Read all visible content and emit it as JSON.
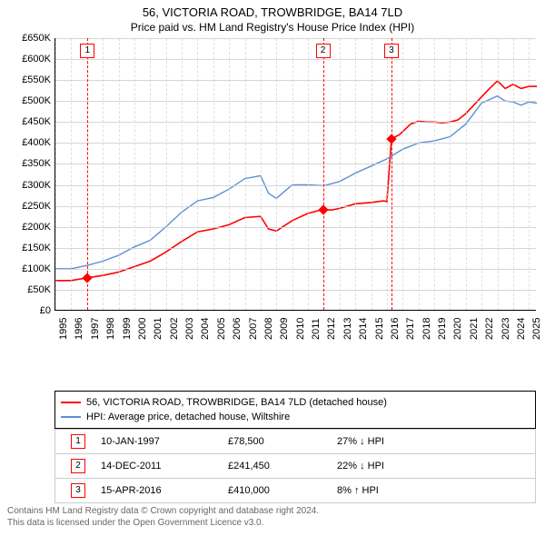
{
  "background_color": "#ffffff",
  "text_color": "#000000",
  "grid_color": "#cccccc",
  "title": {
    "line1": "56, VICTORIA ROAD, TROWBRIDGE, BA14 7LD",
    "line2": "Price paid vs. HM Land Registry's House Price Index (HPI)",
    "fontsize1": 13,
    "fontsize2": 12
  },
  "chart": {
    "type": "line",
    "xlim": [
      1995,
      2025.5
    ],
    "ylim": [
      0,
      650000
    ],
    "ytick_step": 50000,
    "yticks": [
      "£0",
      "£50K",
      "£100K",
      "£150K",
      "£200K",
      "£250K",
      "£300K",
      "£350K",
      "£400K",
      "£450K",
      "£500K",
      "£550K",
      "£600K",
      "£650K"
    ],
    "xticks": [
      1995,
      1996,
      1997,
      1998,
      1999,
      2000,
      2001,
      2002,
      2003,
      2004,
      2005,
      2006,
      2007,
      2008,
      2009,
      2010,
      2011,
      2012,
      2013,
      2014,
      2015,
      2016,
      2017,
      2018,
      2019,
      2020,
      2021,
      2022,
      2023,
      2024,
      2025
    ],
    "series": [
      {
        "name": "price_paid",
        "label": "56, VICTORIA ROAD, TROWBRIDGE, BA14 7LD (detached house)",
        "color": "#ff0000",
        "line_width": 1.6,
        "points": [
          [
            1995.0,
            72000
          ],
          [
            1996.0,
            72000
          ],
          [
            1997.0,
            78500
          ],
          [
            1998.0,
            84000
          ],
          [
            1999.0,
            92000
          ],
          [
            2000.0,
            105000
          ],
          [
            2001.0,
            118000
          ],
          [
            2002.0,
            140000
          ],
          [
            2003.0,
            165000
          ],
          [
            2004.0,
            188000
          ],
          [
            2005.0,
            195000
          ],
          [
            2006.0,
            205000
          ],
          [
            2007.0,
            222000
          ],
          [
            2008.0,
            225000
          ],
          [
            2008.5,
            195000
          ],
          [
            2009.0,
            190000
          ],
          [
            2010.0,
            215000
          ],
          [
            2011.0,
            232000
          ],
          [
            2011.95,
            241450
          ],
          [
            2012.5,
            240000
          ],
          [
            2013.0,
            244000
          ],
          [
            2014.0,
            255000
          ],
          [
            2015.0,
            258000
          ],
          [
            2015.8,
            262000
          ],
          [
            2016.0,
            260000
          ],
          [
            2016.29,
            410000
          ],
          [
            2016.8,
            420000
          ],
          [
            2017.5,
            445000
          ],
          [
            2018.0,
            452000
          ],
          [
            2018.5,
            450000
          ],
          [
            2019.0,
            450000
          ],
          [
            2019.5,
            448000
          ],
          [
            2020.0,
            450000
          ],
          [
            2020.5,
            455000
          ],
          [
            2021.0,
            470000
          ],
          [
            2021.5,
            490000
          ],
          [
            2022.0,
            510000
          ],
          [
            2022.5,
            530000
          ],
          [
            2023.0,
            548000
          ],
          [
            2023.5,
            530000
          ],
          [
            2024.0,
            540000
          ],
          [
            2024.5,
            530000
          ],
          [
            2025.0,
            535000
          ],
          [
            2025.5,
            535000
          ]
        ]
      },
      {
        "name": "hpi",
        "label": "HPI: Average price, detached house, Wiltshire",
        "color": "#5b8fd6",
        "line_width": 1.4,
        "points": [
          [
            1995.0,
            100000
          ],
          [
            1996.0,
            100000
          ],
          [
            1997.0,
            108000
          ],
          [
            1998.0,
            118000
          ],
          [
            1999.0,
            132000
          ],
          [
            2000.0,
            152000
          ],
          [
            2001.0,
            168000
          ],
          [
            2002.0,
            200000
          ],
          [
            2003.0,
            235000
          ],
          [
            2004.0,
            262000
          ],
          [
            2005.0,
            270000
          ],
          [
            2006.0,
            290000
          ],
          [
            2007.0,
            315000
          ],
          [
            2008.0,
            322000
          ],
          [
            2008.5,
            280000
          ],
          [
            2009.0,
            268000
          ],
          [
            2010.0,
            300000
          ],
          [
            2011.0,
            300000
          ],
          [
            2012.0,
            298000
          ],
          [
            2013.0,
            308000
          ],
          [
            2014.0,
            328000
          ],
          [
            2015.0,
            345000
          ],
          [
            2016.0,
            362000
          ],
          [
            2017.0,
            385000
          ],
          [
            2018.0,
            400000
          ],
          [
            2019.0,
            405000
          ],
          [
            2020.0,
            415000
          ],
          [
            2021.0,
            445000
          ],
          [
            2022.0,
            495000
          ],
          [
            2023.0,
            512000
          ],
          [
            2023.5,
            500000
          ],
          [
            2024.0,
            498000
          ],
          [
            2024.5,
            490000
          ],
          [
            2025.0,
            498000
          ],
          [
            2025.5,
            495000
          ]
        ]
      }
    ],
    "sale_markers": [
      {
        "n": "1",
        "x": 1997.03,
        "y": 78500
      },
      {
        "n": "2",
        "x": 2011.95,
        "y": 241450
      },
      {
        "n": "3",
        "x": 2016.29,
        "y": 410000
      }
    ],
    "marker_color": "#ff0000",
    "marker_size": 8
  },
  "legend": {
    "border_color": "#000000",
    "items": [
      {
        "color": "#ff0000",
        "label": "56, VICTORIA ROAD, TROWBRIDGE, BA14 7LD (detached house)"
      },
      {
        "color": "#5b8fd6",
        "label": "HPI: Average price, detached house, Wiltshire"
      }
    ]
  },
  "table": {
    "border_color": "#cccccc",
    "rows": [
      {
        "n": "1",
        "date": "10-JAN-1997",
        "price": "£78,500",
        "pct": "27% ↓ HPI"
      },
      {
        "n": "2",
        "date": "14-DEC-2011",
        "price": "£241,450",
        "pct": "22% ↓ HPI"
      },
      {
        "n": "3",
        "date": "15-APR-2016",
        "price": "£410,000",
        "pct": "8% ↑ HPI"
      }
    ]
  },
  "footer": {
    "line1": "Contains HM Land Registry data © Crown copyright and database right 2024.",
    "line2": "This data is licensed under the Open Government Licence v3.0.",
    "color": "#666666"
  }
}
